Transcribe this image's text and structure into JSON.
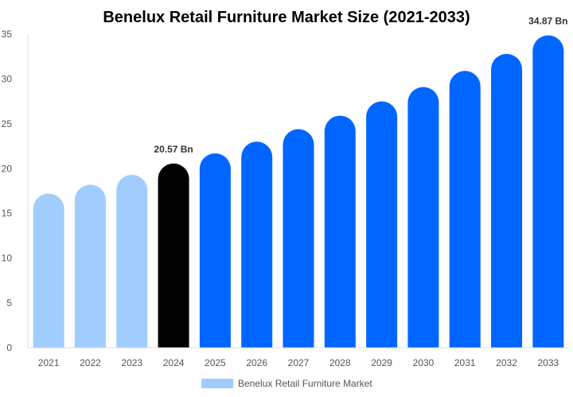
{
  "chart_data": {
    "type": "bar",
    "title": "Benelux Retail Furniture Market Size (2021-2033)",
    "xlabel": "",
    "ylabel": "",
    "ylim": [
      0,
      35
    ],
    "yticks": [
      0,
      5,
      10,
      15,
      20,
      25,
      30,
      35
    ],
    "grid": false,
    "legend_position": "bottom",
    "categories": [
      "2021",
      "2022",
      "2023",
      "2024",
      "2025",
      "2026",
      "2027",
      "2028",
      "2029",
      "2030",
      "2031",
      "2032",
      "2033"
    ],
    "series": [
      {
        "name": "Benelux Retail Furniture Market",
        "values": [
          17.2,
          18.2,
          19.3,
          20.57,
          21.7,
          23.0,
          24.4,
          25.9,
          27.5,
          29.1,
          30.9,
          32.8,
          34.87
        ]
      }
    ],
    "bar_colors": [
      "#a0cdfd",
      "#a0cdfd",
      "#a0cdfd",
      "#000000",
      "#0066ff",
      "#0066ff",
      "#0066ff",
      "#0066ff",
      "#0066ff",
      "#0066ff",
      "#0066ff",
      "#0066ff",
      "#0066ff"
    ],
    "legend_color": "#a0cdfd",
    "annotations": [
      {
        "category": "2024",
        "text": "20.57 Bn"
      },
      {
        "category": "2033",
        "text": "34.87 Bn"
      }
    ]
  }
}
